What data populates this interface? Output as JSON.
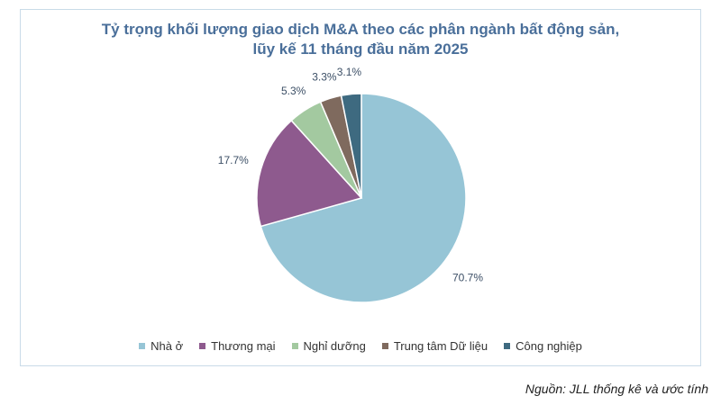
{
  "chart_data": {
    "type": "pie",
    "title": "Tỷ trọng khối lượng giao dịch M&A theo các phân ngành bất động sản, lũy kế 11 tháng đầu năm 2025",
    "categories": [
      "Nhà ở",
      "Thương mại",
      "Nghỉ dưỡng",
      "Trung tâm Dữ liệu",
      "Công nghiệp"
    ],
    "values": [
      70.7,
      17.7,
      5.3,
      3.3,
      3.1
    ],
    "value_labels": [
      "70.7%",
      "17.7%",
      "5.3%",
      "3.3%",
      "3.1%"
    ],
    "colors": [
      "#96c5d6",
      "#8e5a8e",
      "#a3c9a0",
      "#7f6a5e",
      "#3e6a80"
    ],
    "legend": "bottom"
  },
  "source": "Nguồn: JLL thống kê và ước tính"
}
